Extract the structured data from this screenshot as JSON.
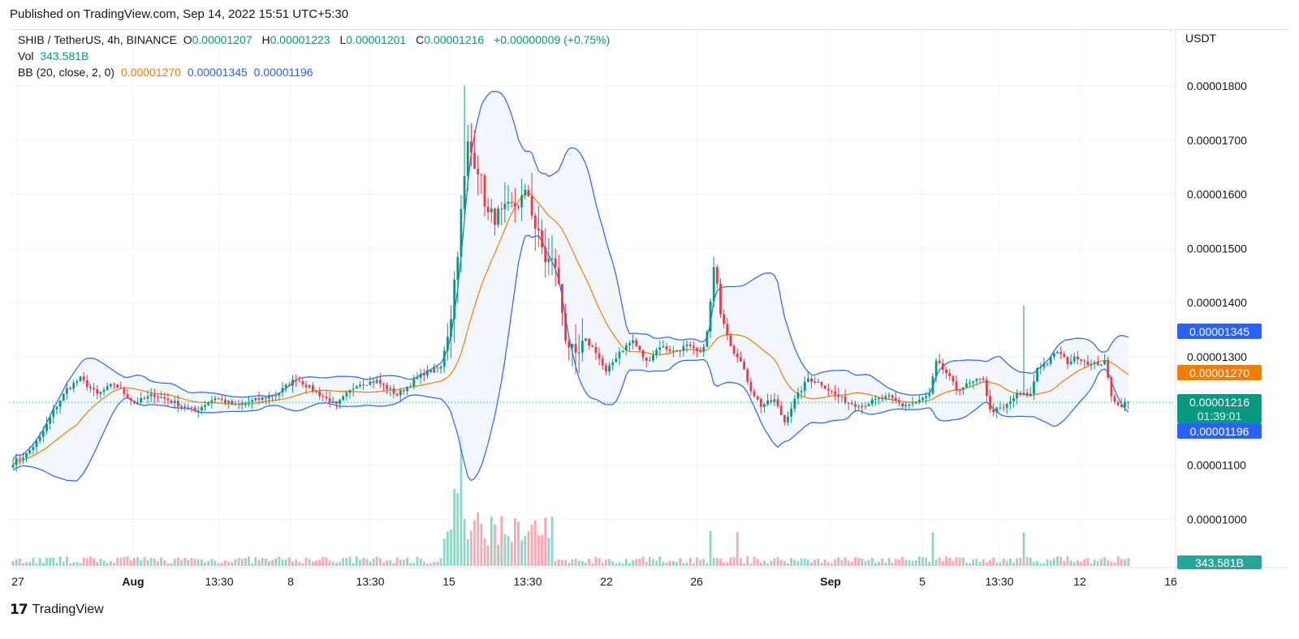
{
  "header": {
    "published": "Published on TradingView.com, Sep 14, 2022 15:51 UTC+5:30"
  },
  "legend": {
    "symbol": "SHIB / TetherUS, 4h, BINANCE",
    "o_label": "O",
    "o_value": "0.00001207",
    "h_label": "H",
    "h_value": "0.00001223",
    "l_label": "L",
    "l_value": "0.00001201",
    "c_label": "C",
    "c_value": "0.00001216",
    "change": "+0.00000009 (+0.75%)",
    "vol_label": "Vol",
    "vol_value": "343.581B",
    "bb_label": "BB (20, close, 2, 0)",
    "bb_basis": "0.00001270",
    "bb_upper": "0.00001345",
    "bb_lower": "0.00001196"
  },
  "price_axis": {
    "unit": "USDT"
  },
  "price_tags": {
    "upper": "0.00001345",
    "basis": "0.00001270",
    "last": "0.00001216",
    "countdown": "01:39:01",
    "lower": "0.00001196",
    "volume": "343.581B"
  },
  "colors": {
    "up": "#089981",
    "down": "#f23645",
    "basis": "#f57c00",
    "band": "#2962ff",
    "band_fill": "#e9f2fb"
  },
  "footer": {
    "brand": "TradingView"
  },
  "chart_data": {
    "type": "candlestick",
    "interval": "4h",
    "y_ticks": [
      "0.00001000",
      "0.00001100",
      "0.00001200",
      "0.00001300",
      "0.00001400",
      "0.00001500",
      "0.00001600",
      "0.00001700",
      "0.00001800"
    ],
    "ylim": [
      9.3e-06,
      1.89e-05
    ],
    "x_ticks": [
      "27",
      "Aug",
      "13:30",
      "8",
      "13:30",
      "15",
      "13:30",
      "22",
      "26",
      "Sep",
      "5",
      "13:30",
      "12",
      "16"
    ],
    "anchors": [
      {
        "bar": 0,
        "price": 11.05
      },
      {
        "bar": 4,
        "price": 11.2
      },
      {
        "bar": 8,
        "price": 11.5
      },
      {
        "bar": 12,
        "price": 12.0
      },
      {
        "bar": 16,
        "price": 12.4
      },
      {
        "bar": 20,
        "price": 12.6
      },
      {
        "bar": 25,
        "price": 12.3
      },
      {
        "bar": 30,
        "price": 12.5
      },
      {
        "bar": 36,
        "price": 12.15
      },
      {
        "bar": 42,
        "price": 12.3
      },
      {
        "bar": 48,
        "price": 12.15
      },
      {
        "bar": 54,
        "price": 12.0
      },
      {
        "bar": 60,
        "price": 12.25
      },
      {
        "bar": 66,
        "price": 12.1
      },
      {
        "bar": 72,
        "price": 12.2
      },
      {
        "bar": 78,
        "price": 12.3
      },
      {
        "bar": 84,
        "price": 12.6
      },
      {
        "bar": 90,
        "price": 12.35
      },
      {
        "bar": 96,
        "price": 12.1
      },
      {
        "bar": 102,
        "price": 12.5
      },
      {
        "bar": 108,
        "price": 12.55
      },
      {
        "bar": 114,
        "price": 12.3
      },
      {
        "bar": 118,
        "price": 12.5
      },
      {
        "bar": 122,
        "price": 12.7
      },
      {
        "bar": 127,
        "price": 12.8
      },
      {
        "bar": 130,
        "price": 13.8
      },
      {
        "bar": 132,
        "price": 15.0
      },
      {
        "bar": 135,
        "price": 16.9
      },
      {
        "bar": 138,
        "price": 16.5
      },
      {
        "bar": 141,
        "price": 15.6
      },
      {
        "bar": 145,
        "price": 15.6
      },
      {
        "bar": 149,
        "price": 15.8
      },
      {
        "bar": 153,
        "price": 16.0
      },
      {
        "bar": 155,
        "price": 15.4
      },
      {
        "bar": 158,
        "price": 14.8
      },
      {
        "bar": 161,
        "price": 14.7
      },
      {
        "bar": 164,
        "price": 13.4
      },
      {
        "bar": 167,
        "price": 12.9
      },
      {
        "bar": 170,
        "price": 13.3
      },
      {
        "bar": 173,
        "price": 13.1
      },
      {
        "bar": 176,
        "price": 12.7
      },
      {
        "bar": 180,
        "price": 13.1
      },
      {
        "bar": 184,
        "price": 13.3
      },
      {
        "bar": 188,
        "price": 12.9
      },
      {
        "bar": 192,
        "price": 13.2
      },
      {
        "bar": 196,
        "price": 13.1
      },
      {
        "bar": 200,
        "price": 13.2
      },
      {
        "bar": 204,
        "price": 13.05
      },
      {
        "bar": 206,
        "price": 13.4
      },
      {
        "bar": 208,
        "price": 14.6
      },
      {
        "bar": 210,
        "price": 13.9
      },
      {
        "bar": 213,
        "price": 13.3
      },
      {
        "bar": 216,
        "price": 12.9
      },
      {
        "bar": 219,
        "price": 12.4
      },
      {
        "bar": 222,
        "price": 12.1
      },
      {
        "bar": 226,
        "price": 12.2
      },
      {
        "bar": 229,
        "price": 11.8
      },
      {
        "bar": 232,
        "price": 12.2
      },
      {
        "bar": 236,
        "price": 12.6
      },
      {
        "bar": 240,
        "price": 12.5
      },
      {
        "bar": 244,
        "price": 12.3
      },
      {
        "bar": 248,
        "price": 12.15
      },
      {
        "bar": 252,
        "price": 12.1
      },
      {
        "bar": 256,
        "price": 12.2
      },
      {
        "bar": 260,
        "price": 12.25
      },
      {
        "bar": 264,
        "price": 12.1
      },
      {
        "bar": 268,
        "price": 12.15
      },
      {
        "bar": 272,
        "price": 12.3
      },
      {
        "bar": 274,
        "price": 12.9
      },
      {
        "bar": 277,
        "price": 12.7
      },
      {
        "bar": 280,
        "price": 12.4
      },
      {
        "bar": 284,
        "price": 12.5
      },
      {
        "bar": 288,
        "price": 12.6
      },
      {
        "bar": 290,
        "price": 12.0
      },
      {
        "bar": 294,
        "price": 12.05
      },
      {
        "bar": 298,
        "price": 12.3
      },
      {
        "bar": 302,
        "price": 12.3
      },
      {
        "bar": 304,
        "price": 12.8
      },
      {
        "bar": 307,
        "price": 12.9
      },
      {
        "bar": 310,
        "price": 13.1
      },
      {
        "bar": 313,
        "price": 12.9
      },
      {
        "bar": 316,
        "price": 13.0
      },
      {
        "bar": 320,
        "price": 12.85
      },
      {
        "bar": 324,
        "price": 12.9
      },
      {
        "bar": 326,
        "price": 12.3
      },
      {
        "bar": 328,
        "price": 12.1
      },
      {
        "bar": 331,
        "price": 12.16
      }
    ],
    "series": [
      {
        "name": "BB (20, close, 2, 0)",
        "values": [
          12.7,
          13.45,
          11.96
        ]
      }
    ],
    "last_close": 1.216e-05
  }
}
